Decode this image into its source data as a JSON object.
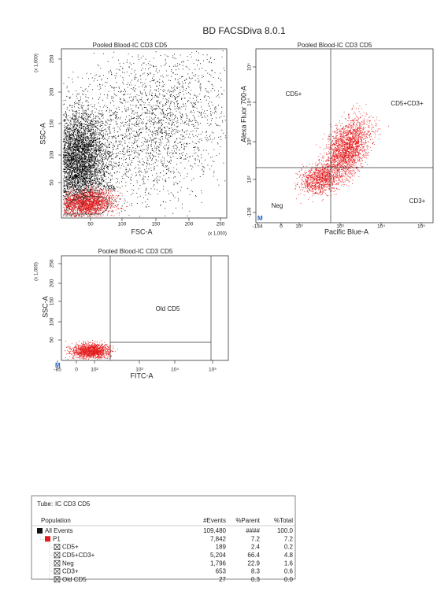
{
  "header": {
    "title": "BD FACSDiva 8.0.1"
  },
  "plots": [
    {
      "title": "Pooled Blood-IC CD3 CD5",
      "x_label": "FSC-A",
      "y_label": "SSC-A",
      "x_scale_note": "(x 1,000)",
      "y_scale_note": "(x 1,000)",
      "x_ticks": [
        "50",
        "100",
        "150",
        "200",
        "250"
      ],
      "y_ticks": [
        "50",
        "100",
        "150",
        "200",
        "250"
      ],
      "gates": [
        "P1"
      ]
    },
    {
      "title": "Pooled Blood-IC CD3 CD5",
      "x_label": "Pacific Blue-A",
      "y_label": "Alexa Fluor 700-A",
      "corner_mark": "M",
      "x_ticks": [
        "-134",
        "0",
        "10²",
        "10³",
        "10⁴",
        "10⁵"
      ],
      "y_ticks": [
        "-139",
        "10²",
        "10³",
        "10⁴",
        "10⁵"
      ],
      "gates": [
        "CD5+",
        "CD5+CD3+",
        "Neg",
        "CD3+"
      ]
    },
    {
      "title": "Pooled Blood-IC CD3 CD5",
      "x_label": "FITC-A",
      "y_label": "SSC-A",
      "y_scale_note": "(x 1,000)",
      "corner_mark": "M",
      "x_ticks": [
        "-85",
        "0",
        "10²",
        "10³",
        "10⁴",
        "10⁵"
      ],
      "y_ticks": [
        "50",
        "100",
        "150",
        "200",
        "250"
      ],
      "gates": [
        "Old CD5"
      ]
    }
  ],
  "table": {
    "tube_label": "Tube:",
    "tube_name": "IC CD3 CD5",
    "columns": [
      "Population",
      "#Events",
      "%Parent",
      "%Total"
    ],
    "rows": [
      [
        "All Events",
        "109,480",
        "####",
        "100.0"
      ],
      [
        "P1",
        "7,842",
        "7.2",
        "7.2"
      ],
      [
        "CD5+",
        "189",
        "2.4",
        "0.2"
      ],
      [
        "CD5+CD3+",
        "5,204",
        "66.4",
        "4.8"
      ],
      [
        "Neg",
        "1,796",
        "22.9",
        "1.6"
      ],
      [
        "CD3+",
        "653",
        "8.3",
        "0.6"
      ],
      [
        "Old CD5",
        "27",
        "0.3",
        "0.0"
      ]
    ]
  }
}
